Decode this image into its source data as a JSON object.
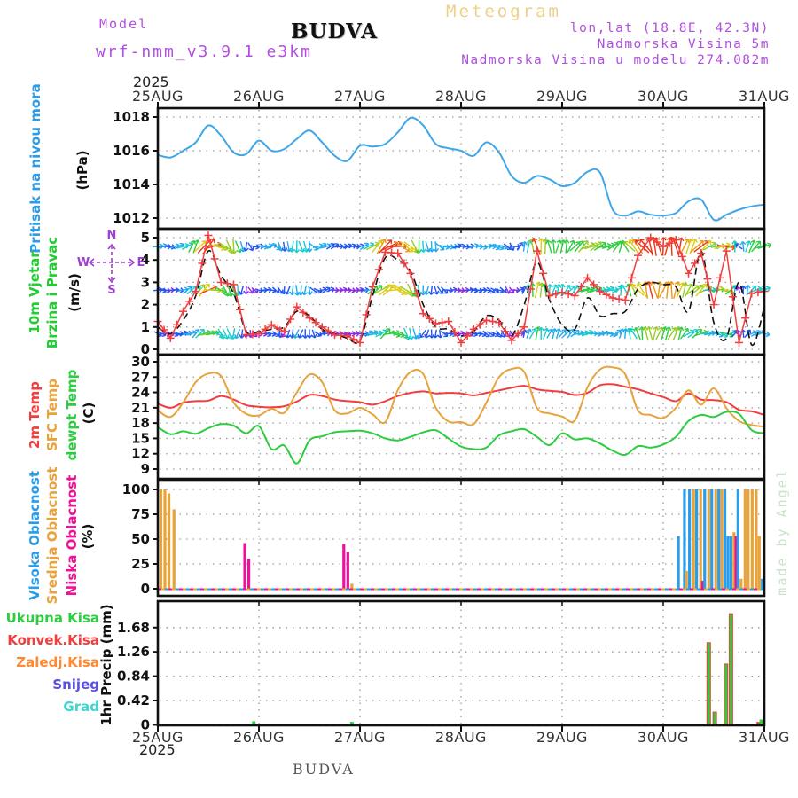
{
  "header": {
    "meteogram_title": "Meteogram",
    "model_label": "Model",
    "model_name": "wrf-nmm_v3.9.1 e3km",
    "station": "BUDVA",
    "lonlat": "lon,lat (18.8E, 42.3N)",
    "elevation": "Nadmorska Visina 5m",
    "model_elevation": "Nadmorska Visina u modelu 274.082m"
  },
  "footer": {
    "station": "BUDVA",
    "year": "2025"
  },
  "watermark": "made by Angel",
  "x_axis": {
    "year": "2025",
    "days": [
      "25AUG",
      "26AUG",
      "27AUG",
      "28AUG",
      "29AUG",
      "30AUG",
      "31AUG"
    ]
  },
  "panels": {
    "pressure": {
      "label": "Pritisak na nivou mora",
      "unit": "(hPa)",
      "label_color": "#2b9ce8"
    },
    "wind": {
      "label1": "10m Vjetar",
      "label2": "Brzina i Pravac",
      "unit": "(m/s)",
      "label_color": "#22cc33",
      "compass": {
        "n": "N",
        "e": "E",
        "s": "S",
        "w": "W",
        "color": "#a040d0"
      }
    },
    "temp": {
      "labels": [
        {
          "text": "2m Temp",
          "color": "#f03e3e"
        },
        {
          "text": "SFC Temp",
          "color": "#e8a33c"
        },
        {
          "text": "dewpt Temp",
          "color": "#2ecc40"
        }
      ],
      "unit": "(C)"
    },
    "cloud": {
      "labels": [
        {
          "text": "Vlsoka Oblacnost",
          "color": "#2b9ce8"
        },
        {
          "text": "Srednja Oblacnost",
          "color": "#e8a33c"
        },
        {
          "text": "Niska Oblacnost",
          "color": "#ee1199"
        }
      ],
      "unit": "(%)"
    },
    "precip": {
      "labels": [
        {
          "text": "Ukupna Kisa",
          "color": "#2ecc40"
        },
        {
          "text": "Konvek.Kisa",
          "color": "#f03e3e"
        },
        {
          "text": "Zaledj.Kisa",
          "color": "#ff8833"
        },
        {
          "text": "Snijeg",
          "color": "#5b4fe8"
        },
        {
          "text": "Grad",
          "color": "#3fd4d4"
        }
      ],
      "unit": "1hr Precip (mm)"
    }
  },
  "chart_data": [
    {
      "type": "line",
      "panel": "pressure",
      "title": "Pritisak na nivou mora (hPa)",
      "x_start": "25AUG2025 00h",
      "x_step_hours": 3,
      "ylim": [
        1011.4,
        1018.6
      ],
      "yticks": [
        1012,
        1014,
        1016,
        1018
      ],
      "grid": true,
      "line_color": "#3fa6e8",
      "values": [
        1015.75,
        1015.6,
        1016.0,
        1016.5,
        1017.5,
        1016.9,
        1015.9,
        1015.8,
        1016.6,
        1016.0,
        1016.1,
        1016.7,
        1017.2,
        1016.5,
        1015.7,
        1015.4,
        1016.3,
        1016.25,
        1016.4,
        1017.1,
        1017.95,
        1017.5,
        1016.4,
        1016.15,
        1016.0,
        1015.7,
        1016.5,
        1015.9,
        1014.5,
        1014.1,
        1014.5,
        1014.3,
        1013.9,
        1014.1,
        1014.75,
        1014.7,
        1012.5,
        1012.15,
        1012.4,
        1012.2,
        1012.15,
        1012.3,
        1013.0,
        1013.1,
        1011.9,
        1012.2,
        1012.5,
        1012.7,
        1012.8
      ]
    },
    {
      "type": "wind",
      "panel": "wind",
      "title": "10m Vjetar Brzina i Pravac (m/s)",
      "x_step_hours": 3,
      "ylim": [
        -0.25,
        5.4
      ],
      "yticks": [
        0,
        1,
        2,
        3,
        4,
        5
      ],
      "barb_rows_ms": [
        4.6,
        2.65,
        0.7
      ],
      "speed_red": [
        1.25,
        0.5,
        1.7,
        2.6,
        5.1,
        3.0,
        2.9,
        0.65,
        0.7,
        1.1,
        0.8,
        1.9,
        1.4,
        1.0,
        0.65,
        0.6,
        0.3,
        2.8,
        4.35,
        4.3,
        3.4,
        1.6,
        1.15,
        1.25,
        0.3,
        0.9,
        1.3,
        1.2,
        0.4,
        1.0,
        4.4,
        2.4,
        2.55,
        2.4,
        3.2,
        2.6,
        2.3,
        2.2,
        4.2,
        5.0,
        4.6,
        4.9,
        3.4,
        4.3,
        2.0,
        4.4,
        0.3,
        2.5,
        2.6
      ],
      "speed_black": [
        1.0,
        0.7,
        1.3,
        2.4,
        4.4,
        3.3,
        2.5,
        0.8,
        0.8,
        0.9,
        1.0,
        1.7,
        1.5,
        0.9,
        0.7,
        0.5,
        0.4,
        2.4,
        4.1,
        4.0,
        3.5,
        2.0,
        1.0,
        0.9,
        0.6,
        0.8,
        1.5,
        1.3,
        0.6,
        2.0,
        3.9,
        2.2,
        1.1,
        0.9,
        2.3,
        1.5,
        1.6,
        1.7,
        2.7,
        3.0,
        2.9,
        2.8,
        1.7,
        4.4,
        1.2,
        0.5,
        3.0,
        0.2,
        1.9
      ],
      "dir_deg": [
        -5,
        -10,
        15,
        55,
        30,
        -35,
        -85,
        -95,
        -5,
        0,
        -100,
        -95,
        -85,
        25,
        10,
        0,
        5,
        30,
        45,
        -15,
        -60,
        -100,
        -85,
        -5,
        0,
        -5,
        -15,
        -30,
        -60,
        75,
        90,
        85,
        70,
        45,
        20,
        15,
        10,
        110,
        125,
        105,
        75,
        85,
        55,
        35,
        5,
        -15,
        120,
        45,
        10
      ],
      "marker_color": "#f03e3e",
      "line_color": "#111111"
    },
    {
      "type": "line",
      "panel": "temp",
      "title": "Temperature (C)",
      "x_step_hours": 3,
      "ylim": [
        7.8,
        31.2
      ],
      "yticks": [
        9,
        12,
        15,
        18,
        21,
        24,
        27,
        30
      ],
      "series": [
        {
          "name": "2m Temp",
          "color": "#f03e3e",
          "values": [
            21.8,
            21.0,
            22.0,
            22.3,
            22.4,
            23.3,
            22.6,
            21.5,
            21.2,
            21.1,
            21.3,
            22.2,
            23.5,
            23.3,
            22.6,
            22.3,
            22.1,
            21.6,
            22.3,
            23.3,
            23.9,
            24.2,
            23.8,
            23.9,
            23.8,
            23.4,
            23.9,
            24.4,
            24.9,
            25.3,
            24.6,
            24.3,
            24.1,
            23.5,
            23.9,
            25.4,
            25.6,
            25.1,
            24.6,
            23.8,
            23.1,
            22.3,
            23.8,
            22.6,
            22.5,
            22.1,
            20.6,
            20.3,
            19.6
          ]
        },
        {
          "name": "SFC Temp",
          "color": "#e8a33c",
          "values": [
            20.5,
            19.2,
            22.0,
            26.0,
            27.7,
            27.2,
            22.0,
            19.8,
            19.5,
            20.8,
            20.0,
            24.0,
            27.5,
            26.0,
            20.5,
            19.9,
            21.0,
            19.7,
            18.2,
            24.5,
            28.0,
            27.6,
            21.0,
            18.3,
            18.2,
            17.8,
            22.0,
            27.0,
            28.6,
            28.0,
            21.0,
            19.9,
            19.3,
            18.5,
            25.0,
            28.5,
            28.9,
            27.5,
            20.5,
            19.6,
            19.0,
            21.0,
            24.4,
            21.6,
            24.8,
            20.9,
            18.4,
            17.6,
            17.3
          ]
        },
        {
          "name": "dewpt Temp",
          "color": "#2ecc40",
          "values": [
            17.2,
            15.8,
            16.4,
            15.9,
            17.0,
            17.8,
            17.5,
            16.0,
            17.4,
            12.9,
            13.6,
            10.1,
            14.6,
            15.4,
            16.2,
            16.4,
            16.5,
            16.0,
            15.0,
            14.6,
            15.3,
            16.2,
            16.6,
            15.0,
            13.4,
            12.9,
            13.2,
            15.6,
            16.4,
            16.8,
            15.3,
            13.7,
            16.0,
            14.8,
            15.0,
            14.0,
            12.6,
            11.8,
            13.5,
            13.2,
            13.8,
            15.3,
            18.4,
            19.6,
            19.2,
            20.2,
            19.8,
            16.6,
            16.0
          ]
        }
      ]
    },
    {
      "type": "bar",
      "panel": "cloud",
      "title": "Oblacnost (%)",
      "ylim": [
        0,
        107
      ],
      "yticks": [
        0,
        25,
        50,
        75,
        100
      ],
      "bar_colors": {
        "B": "#2b9ce8",
        "O": "#e8a33c",
        "M": "#ee1199"
      },
      "bars": [
        [
          0.03,
          100,
          "O"
        ],
        [
          0.07,
          100,
          "O"
        ],
        [
          0.11,
          96,
          "O"
        ],
        [
          0.16,
          80,
          "O"
        ],
        [
          0.86,
          46,
          "M"
        ],
        [
          0.9,
          30,
          "M"
        ],
        [
          1.84,
          45,
          "M"
        ],
        [
          1.88,
          37,
          "M"
        ],
        [
          1.92,
          5,
          "O"
        ],
        [
          5.15,
          53,
          "B"
        ],
        [
          5.21,
          100,
          "B"
        ],
        [
          5.23,
          18,
          "O"
        ],
        [
          5.26,
          100,
          "B"
        ],
        [
          5.3,
          100,
          "O"
        ],
        [
          5.33,
          100,
          "B"
        ],
        [
          5.37,
          100,
          "O"
        ],
        [
          5.39,
          8,
          "M"
        ],
        [
          5.41,
          100,
          "B"
        ],
        [
          5.45,
          100,
          "O"
        ],
        [
          5.48,
          100,
          "B"
        ],
        [
          5.52,
          100,
          "O"
        ],
        [
          5.55,
          100,
          "B"
        ],
        [
          5.58,
          100,
          "O"
        ],
        [
          5.61,
          100,
          "B"
        ],
        [
          5.64,
          53,
          "B"
        ],
        [
          5.67,
          53,
          "B"
        ],
        [
          5.7,
          57,
          "O"
        ],
        [
          5.72,
          53,
          "M"
        ],
        [
          5.74,
          100,
          "B"
        ],
        [
          5.77,
          10,
          "O"
        ],
        [
          5.81,
          100,
          "O"
        ],
        [
          5.84,
          100,
          "O"
        ],
        [
          5.88,
          100,
          "O"
        ],
        [
          5.92,
          100,
          "O"
        ],
        [
          5.95,
          53,
          "O"
        ],
        [
          5.98,
          10,
          "B"
        ]
      ],
      "zero_line_colors": [
        "#ee1199",
        "#2b9ce8",
        "#e8a33c"
      ]
    },
    {
      "type": "bar",
      "panel": "precip",
      "title": "1hr Precip (mm)",
      "ylim": [
        0,
        2.15
      ],
      "yticks": [
        0,
        0.42,
        0.84,
        1.26,
        1.68
      ],
      "ytick_labels": [
        "0",
        "0.42",
        "0.84",
        "1.26",
        "1.68"
      ],
      "bar_colors": {
        "G": "#2ecc40",
        "R": "#f03e3e",
        "O": "#ff8833"
      },
      "bars": [
        [
          0.95,
          0.06,
          "G"
        ],
        [
          1.92,
          0.05,
          "G"
        ],
        [
          5.45,
          1.42,
          "G"
        ],
        [
          5.51,
          0.22,
          "G"
        ],
        [
          5.62,
          1.05,
          "G"
        ],
        [
          5.67,
          1.92,
          "G"
        ],
        [
          5.94,
          0.05,
          "R"
        ],
        [
          5.97,
          0.09,
          "G"
        ]
      ]
    }
  ],
  "pressure_yticks": [
    "1012",
    "1014",
    "1016",
    "1018"
  ]
}
